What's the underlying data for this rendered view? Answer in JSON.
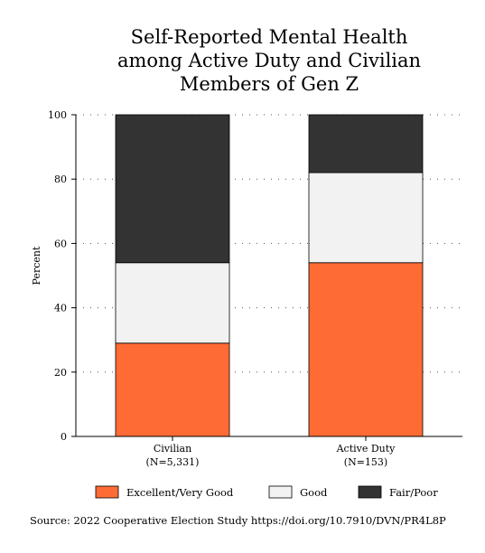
{
  "chart_data": {
    "type": "bar",
    "stacked": true,
    "title_lines": [
      "Self-Reported Mental Health",
      "among Active Duty and Civilian",
      "Members of Gen Z"
    ],
    "ylabel": "Percent",
    "ylim": [
      0,
      100
    ],
    "yticks": [
      0,
      20,
      40,
      60,
      80,
      100
    ],
    "categories": [
      {
        "name": "Civilian",
        "n": "(N=5,331)"
      },
      {
        "name": "Active Duty",
        "n": "(N=153)"
      }
    ],
    "series": [
      {
        "name": "Excellent/Very Good",
        "color": "#ff6b35",
        "values": [
          29,
          54
        ]
      },
      {
        "name": "Good",
        "color": "#f2f2f2",
        "values": [
          25,
          28
        ]
      },
      {
        "name": "Fair/Poor",
        "color": "#333333",
        "values": [
          46,
          18
        ]
      }
    ],
    "grid": "dotted",
    "legend_position": "bottom",
    "source": "Source: 2022 Cooperative Election Study https://doi.org/10.7910/DVN/PR4L8P"
  }
}
